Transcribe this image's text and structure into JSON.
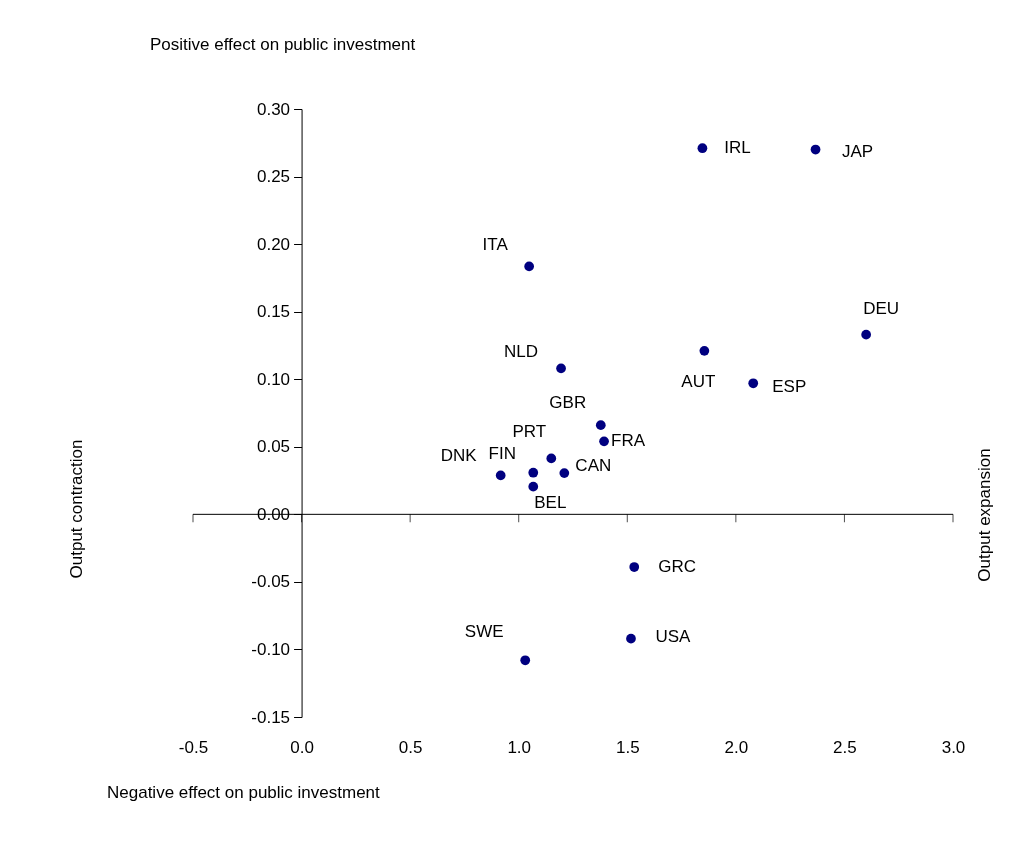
{
  "chart_data": {
    "type": "scatter",
    "title": "Positive effect on public investment",
    "xlabel": "Negative effect on public investment",
    "x": [
      1.846,
      2.367,
      1.048,
      2.6,
      1.195,
      1.855,
      2.08,
      1.378,
      1.393,
      1.15,
      0.917,
      1.067,
      1.21,
      1.067,
      1.532,
      1.517,
      1.03
    ],
    "series": [
      {
        "color": "#000080",
        "values": [
          0.271,
          0.27,
          0.1835,
          0.133,
          0.108,
          0.121,
          0.097,
          0.066,
          0.054,
          0.0414,
          0.0288,
          0.0308,
          0.0305,
          0.0205,
          -0.039,
          -0.092,
          -0.108
        ]
      }
    ],
    "annotations": [
      {
        "text": "IRL",
        "x": 1.846,
        "y": 0.271
      },
      {
        "text": "JAP",
        "x": 2.367,
        "y": 0.27
      },
      {
        "text": "ITA",
        "x": 1.048,
        "y": 0.1835
      },
      {
        "text": "DEU",
        "x": 2.6,
        "y": 0.133
      },
      {
        "text": "NLD",
        "x": 1.195,
        "y": 0.108
      },
      {
        "text": "AUT",
        "x": 1.855,
        "y": 0.121
      },
      {
        "text": "ESP",
        "x": 2.08,
        "y": 0.097
      },
      {
        "text": "GBR",
        "x": 1.378,
        "y": 0.066
      },
      {
        "text": "FRA",
        "x": 1.393,
        "y": 0.054
      },
      {
        "text": "PRT",
        "x": 1.15,
        "y": 0.0414
      },
      {
        "text": "DNK",
        "x": 0.917,
        "y": 0.0288
      },
      {
        "text": "FIN",
        "x": 1.067,
        "y": 0.0308
      },
      {
        "text": "CAN",
        "x": 1.21,
        "y": 0.0305
      },
      {
        "text": "BEL",
        "x": 1.067,
        "y": 0.0205
      },
      {
        "text": "GRC",
        "x": 1.532,
        "y": -0.039
      },
      {
        "text": "USA",
        "x": 1.517,
        "y": -0.092
      },
      {
        "text": "SWE",
        "x": 1.03,
        "y": -0.108
      },
      "Output contraction",
      "Output expansion"
    ],
    "xlim": [
      -0.5,
      3.0
    ],
    "xticks": [
      {
        "value": -0.5,
        "label": "-0.5"
      },
      {
        "value": 0,
        "label": "0.0"
      },
      {
        "value": 0.5,
        "label": "0.5"
      },
      {
        "value": 1,
        "label": "1.0"
      },
      {
        "value": 1.5,
        "label": "1.5"
      },
      {
        "value": 2,
        "label": "2.0"
      },
      {
        "value": 2.5,
        "label": "2.5"
      },
      {
        "value": 3,
        "label": "3.0"
      }
    ],
    "ylim": [
      -0.15,
      0.3
    ],
    "yticks": [
      {
        "value": -0.15,
        "label": "-0.15"
      },
      {
        "value": -0.1,
        "label": "-0.10"
      },
      {
        "value": -0.05,
        "label": "-0.05"
      },
      {
        "value": 0,
        "label": "0.00"
      },
      {
        "value": 0.05,
        "label": "0.05"
      },
      {
        "value": 0.1,
        "label": "0.10"
      },
      {
        "value": 0.15,
        "label": "0.15"
      },
      {
        "value": 0.2,
        "label": "0.20"
      },
      {
        "value": 0.25,
        "label": "0.25"
      },
      {
        "value": 0.3,
        "label": "0.30"
      }
    ],
    "ref_lines": [
      {
        "axis": "y",
        "value": 0,
        "color": "#000000"
      }
    ],
    "marker": "circle",
    "grid": false
  }
}
